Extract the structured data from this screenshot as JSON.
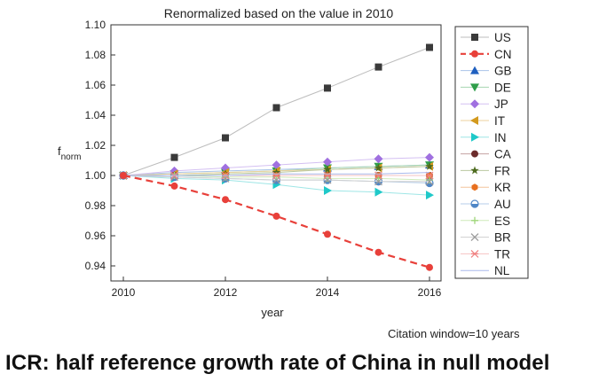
{
  "chart_data": {
    "type": "line",
    "title": "Renormalized based on the value in 2010",
    "xlabel": "year",
    "ylabel": "f",
    "ylabel_sub": "norm",
    "xlim": [
      2010,
      2016
    ],
    "ylim": [
      0.93,
      1.1
    ],
    "xticks": [
      2010,
      2012,
      2014,
      2016
    ],
    "yticks": [
      0.94,
      0.96,
      0.98,
      1.0,
      1.02,
      1.04,
      1.06,
      1.08,
      1.1
    ],
    "grid": false,
    "legend_position": "right",
    "x": [
      2010,
      2011,
      2012,
      2013,
      2014,
      2015,
      2016
    ],
    "series": [
      {
        "name": "US",
        "color": "#3a3a3a",
        "line_color": "#bdbdbd",
        "marker": "square",
        "dashed": false,
        "values": [
          1.0,
          1.012,
          1.025,
          1.045,
          1.058,
          1.072,
          1.085
        ]
      },
      {
        "name": "CN",
        "color": "#e8403a",
        "line_color": "#e8403a",
        "marker": "circle",
        "dashed": true,
        "values": [
          1.0,
          0.993,
          0.984,
          0.973,
          0.961,
          0.949,
          0.939
        ]
      },
      {
        "name": "GB",
        "color": "#1f5fbf",
        "line_color": "#a9c3e8",
        "marker": "triangle-up",
        "dashed": false,
        "values": [
          1.0,
          1.002,
          1.003,
          1.004,
          1.005,
          1.006,
          1.007
        ]
      },
      {
        "name": "DE",
        "color": "#2f9e4a",
        "line_color": "#a6d6b1",
        "marker": "triangle-down",
        "dashed": false,
        "values": [
          1.0,
          1.001,
          1.002,
          1.003,
          1.005,
          1.006,
          1.007
        ]
      },
      {
        "name": "JP",
        "color": "#a070e0",
        "line_color": "#d4c0f2",
        "marker": "diamond",
        "dashed": false,
        "values": [
          1.0,
          1.003,
          1.005,
          1.007,
          1.009,
          1.011,
          1.012
        ]
      },
      {
        "name": "IT",
        "color": "#d39a1e",
        "line_color": "#ecd29d",
        "marker": "triangle-left",
        "dashed": false,
        "values": [
          1.0,
          1.001,
          1.002,
          1.003,
          1.004,
          1.005,
          1.006
        ]
      },
      {
        "name": "IN",
        "color": "#1fc9c9",
        "line_color": "#9fe6e6",
        "marker": "triangle-right",
        "dashed": false,
        "values": [
          1.0,
          0.998,
          0.997,
          0.994,
          0.99,
          0.989,
          0.987
        ]
      },
      {
        "name": "CA",
        "color": "#6b2b2b",
        "line_color": "#c4a2a2",
        "marker": "circle",
        "dashed": false,
        "values": [
          1.0,
          1.0,
          1.0,
          1.0,
          1.0,
          1.0,
          1.0
        ]
      },
      {
        "name": "FR",
        "color": "#4d6b1f",
        "line_color": "#b9c8a0",
        "marker": "star",
        "dashed": false,
        "values": [
          1.0,
          1.0,
          1.001,
          1.002,
          1.004,
          1.005,
          1.006
        ]
      },
      {
        "name": "KR",
        "color": "#e8701f",
        "line_color": "#f4c39c",
        "marker": "hexagon",
        "dashed": false,
        "values": [
          1.0,
          1.0,
          1.0,
          1.0,
          1.0,
          1.0,
          1.0
        ]
      },
      {
        "name": "AU",
        "color": "#4f86c6",
        "line_color": "#b5cde8",
        "marker": "circle-half",
        "dashed": false,
        "values": [
          1.0,
          0.999,
          0.998,
          0.997,
          0.997,
          0.996,
          0.995
        ]
      },
      {
        "name": "ES",
        "color": "#9fd67a",
        "line_color": "#cfeab9",
        "marker": "plus",
        "dashed": false,
        "values": [
          1.0,
          1.0,
          0.999,
          0.999,
          0.998,
          0.998,
          0.997
        ]
      },
      {
        "name": "BR",
        "color": "#9a9a9a",
        "line_color": "#d0d0d0",
        "marker": "x",
        "dashed": false,
        "values": [
          1.0,
          0.999,
          0.998,
          0.997,
          0.997,
          0.996,
          0.996
        ]
      },
      {
        "name": "TR",
        "color": "#f08080",
        "line_color": "#f6c3c3",
        "marker": "asterisk",
        "dashed": false,
        "values": [
          1.0,
          1.0,
          1.0,
          1.0,
          1.0,
          1.0,
          1.0
        ]
      },
      {
        "name": "NL",
        "color": "#4f6fd6",
        "line_color": "#a9b9ec",
        "marker": "none",
        "dashed": false,
        "values": [
          1.0,
          1.0,
          1.0,
          1.001,
          1.001,
          1.001,
          1.002
        ]
      }
    ]
  },
  "annotations": {
    "citation_window": "Citation window=10 years"
  },
  "caption": "ICR: half reference growth rate of China in null model"
}
